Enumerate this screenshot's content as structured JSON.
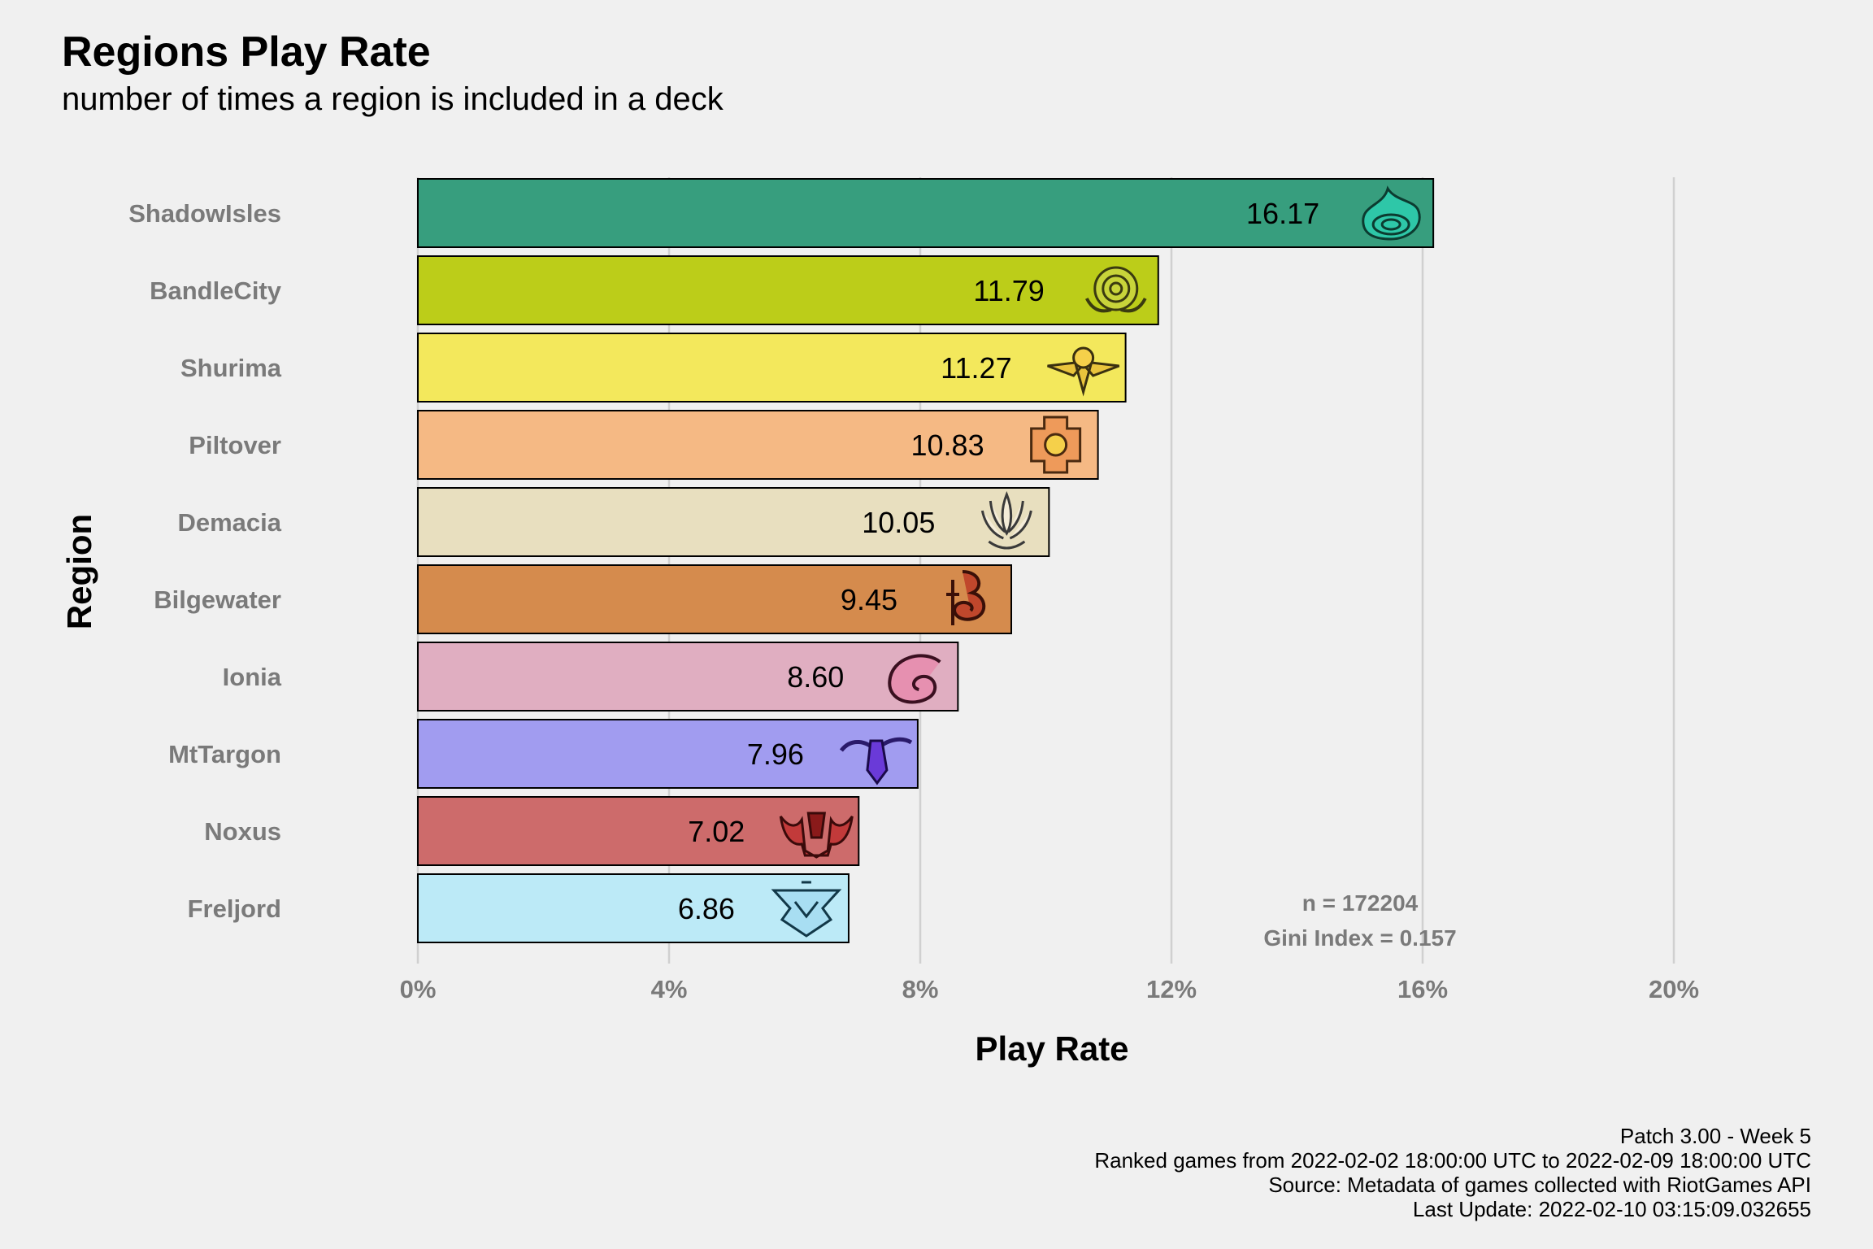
{
  "title": "Regions Play Rate",
  "subtitle": "number of times a region is included in a deck",
  "chart_data": {
    "type": "bar",
    "orientation": "horizontal",
    "title": "Regions Play Rate",
    "subtitle": "number of times a region is included in a deck",
    "xlabel": "Play Rate",
    "ylabel": "Region",
    "xlim": [
      0,
      20
    ],
    "x_ticks": [
      "0%",
      "4%",
      "8%",
      "12%",
      "16%",
      "20%"
    ],
    "x_tick_values": [
      0,
      4,
      8,
      12,
      16,
      20
    ],
    "grid": "vertical major gridlines",
    "categories": [
      "ShadowIsles",
      "BandleCity",
      "Shurima",
      "Piltover",
      "Demacia",
      "Bilgewater",
      "Ionia",
      "MtTargon",
      "Noxus",
      "Freljord"
    ],
    "values": [
      16.17,
      11.79,
      11.27,
      10.83,
      10.05,
      9.45,
      8.6,
      7.96,
      7.02,
      6.86
    ],
    "value_labels": [
      "16.17",
      "11.79",
      "11.27",
      "10.83",
      "10.05",
      "9.45",
      "8.60",
      "7.96",
      "7.02",
      "6.86"
    ],
    "bar_colors": [
      "#379e7e",
      "#bccd19",
      "#f3e85c",
      "#f5b984",
      "#e8dfbf",
      "#d58b4d",
      "#e0aec1",
      "#a19cf0",
      "#cd6b6b",
      "#bceaf7"
    ],
    "icons": [
      "shadowisles-icon",
      "bandlecity-icon",
      "shurima-icon",
      "piltover-icon",
      "demacia-icon",
      "bilgewater-icon",
      "ionia-icon",
      "mttargon-icon",
      "noxus-icon",
      "freljord-icon"
    ],
    "annotations": [
      "n = 172204",
      "Gini Index = 0.157"
    ]
  },
  "caption": [
    "Patch 3.00 - Week 5",
    "Ranked games from 2022-02-02 18:00:00 UTC to 2022-02-09 18:00:00 UTC",
    "Source: Metadata of games collected with RiotGames API",
    "Last Update: 2022-02-10 03:15:09.032655"
  ]
}
